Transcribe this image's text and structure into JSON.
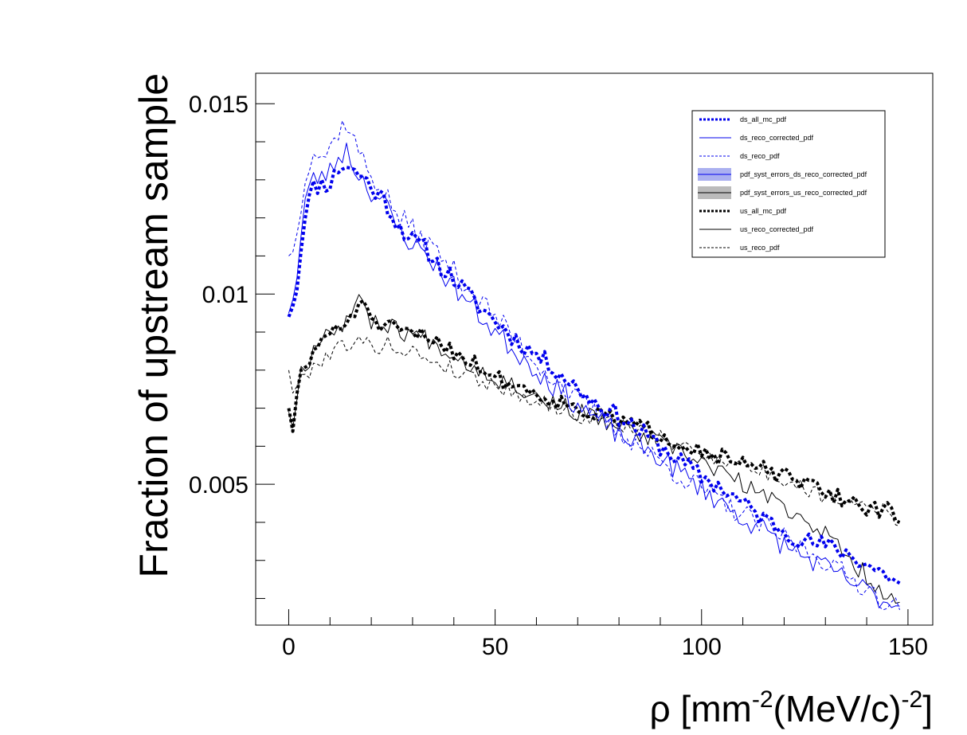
{
  "chart_data": {
    "type": "line",
    "xlabel": "ρ [mm-2(MeV/c)-2]",
    "xlabel_parts": {
      "base": "ρ [mm",
      "sup1": "-2",
      "mid": "(MeV/c)",
      "sup2": "-2",
      "end": "]"
    },
    "ylabel": "Fraction of upstream sample",
    "xlim": [
      -8,
      156
    ],
    "ylim": [
      0.0013,
      0.0158
    ],
    "x_ticks": [
      {
        "value": 0,
        "label": "0"
      },
      {
        "value": 50,
        "label": "50"
      },
      {
        "value": 100,
        "label": "100"
      },
      {
        "value": 150,
        "label": "150"
      }
    ],
    "y_ticks": [
      {
        "value": 0.005,
        "label": "0.005"
      },
      {
        "value": 0.01,
        "label": "0.01"
      },
      {
        "value": 0.015,
        "label": "0.015"
      }
    ],
    "grid": false,
    "legend_position": "top-right",
    "series": [
      {
        "name": "ds_all_mc_pdf",
        "color": "#0000ee",
        "style": "dotted-thick",
        "anchors": [
          [
            0,
            0.0094
          ],
          [
            2,
            0.0102
          ],
          [
            4,
            0.0122
          ],
          [
            6,
            0.0128
          ],
          [
            8,
            0.0129
          ],
          [
            10,
            0.0129
          ],
          [
            12,
            0.0133
          ],
          [
            14,
            0.0134
          ],
          [
            16,
            0.0132
          ],
          [
            18,
            0.0131
          ],
          [
            20,
            0.0128
          ],
          [
            23,
            0.0125
          ],
          [
            26,
            0.0119
          ],
          [
            30,
            0.0114
          ],
          [
            33,
            0.0112
          ],
          [
            36,
            0.0108
          ],
          [
            40,
            0.0104
          ],
          [
            45,
            0.0098
          ],
          [
            50,
            0.0093
          ],
          [
            55,
            0.0088
          ],
          [
            60,
            0.0084
          ],
          [
            65,
            0.008
          ],
          [
            70,
            0.0075
          ],
          [
            75,
            0.0071
          ],
          [
            80,
            0.0068
          ],
          [
            85,
            0.0064
          ],
          [
            90,
            0.006
          ],
          [
            95,
            0.0056
          ],
          [
            100,
            0.0052
          ],
          [
            105,
            0.0049
          ],
          [
            110,
            0.0045
          ],
          [
            115,
            0.0041
          ],
          [
            120,
            0.0038
          ],
          [
            125,
            0.0035
          ],
          [
            130,
            0.0034
          ],
          [
            135,
            0.0032
          ],
          [
            140,
            0.0029
          ],
          [
            145,
            0.0026
          ],
          [
            148,
            0.0024
          ]
        ],
        "noise": 0.00025,
        "seed": 11
      },
      {
        "name": "ds_reco_corrected_pdf",
        "color": "#0000ee",
        "style": "solid-thin",
        "anchors": [
          [
            0,
            0.0095
          ],
          [
            2,
            0.0105
          ],
          [
            4,
            0.0125
          ],
          [
            6,
            0.013
          ],
          [
            8,
            0.0131
          ],
          [
            10,
            0.0132
          ],
          [
            12,
            0.0136
          ],
          [
            14,
            0.0138
          ],
          [
            16,
            0.0133
          ],
          [
            18,
            0.013
          ],
          [
            20,
            0.0127
          ],
          [
            23,
            0.0124
          ],
          [
            26,
            0.0118
          ],
          [
            30,
            0.0113
          ],
          [
            33,
            0.0111
          ],
          [
            36,
            0.0107
          ],
          [
            40,
            0.0102
          ],
          [
            45,
            0.0096
          ],
          [
            50,
            0.009
          ],
          [
            55,
            0.0085
          ],
          [
            60,
            0.008
          ],
          [
            65,
            0.0075
          ],
          [
            70,
            0.0071
          ],
          [
            75,
            0.0067
          ],
          [
            80,
            0.0063
          ],
          [
            85,
            0.006
          ],
          [
            90,
            0.0057
          ],
          [
            95,
            0.0053
          ],
          [
            100,
            0.0049
          ],
          [
            105,
            0.0045
          ],
          [
            110,
            0.0041
          ],
          [
            115,
            0.0038
          ],
          [
            120,
            0.0034
          ],
          [
            125,
            0.0031
          ],
          [
            130,
            0.0028
          ],
          [
            135,
            0.0025
          ],
          [
            140,
            0.0022
          ],
          [
            145,
            0.0019
          ],
          [
            148,
            0.0018
          ]
        ],
        "noise": 0.0003,
        "seed": 23
      },
      {
        "name": "ds_reco_pdf",
        "color": "#0000ee",
        "style": "dashed-thin",
        "anchors": [
          [
            0,
            0.011
          ],
          [
            2,
            0.0115
          ],
          [
            4,
            0.0132
          ],
          [
            6,
            0.0138
          ],
          [
            8,
            0.0136
          ],
          [
            10,
            0.0138
          ],
          [
            12,
            0.0143
          ],
          [
            14,
            0.0145
          ],
          [
            16,
            0.014
          ],
          [
            18,
            0.0135
          ],
          [
            20,
            0.0131
          ],
          [
            23,
            0.0127
          ],
          [
            26,
            0.0121
          ],
          [
            30,
            0.0117
          ],
          [
            33,
            0.0114
          ],
          [
            36,
            0.0111
          ],
          [
            40,
            0.0106
          ],
          [
            45,
            0.01
          ],
          [
            50,
            0.0094
          ],
          [
            55,
            0.0088
          ],
          [
            60,
            0.0082
          ],
          [
            65,
            0.0077
          ],
          [
            70,
            0.0072
          ],
          [
            75,
            0.0068
          ],
          [
            80,
            0.0064
          ],
          [
            85,
            0.006
          ],
          [
            90,
            0.0056
          ],
          [
            95,
            0.0052
          ],
          [
            100,
            0.0049
          ],
          [
            105,
            0.0045
          ],
          [
            110,
            0.0042
          ],
          [
            115,
            0.0039
          ],
          [
            120,
            0.0036
          ],
          [
            125,
            0.0033
          ],
          [
            130,
            0.003
          ],
          [
            135,
            0.0026
          ],
          [
            140,
            0.0023
          ],
          [
            145,
            0.0019
          ],
          [
            148,
            0.0017
          ]
        ],
        "noise": 0.0003,
        "seed": 37
      },
      {
        "name": "pdf_syst_errors_ds_reco_corrected_pdf",
        "color": "#aab0f0",
        "style": "band-blue",
        "anchors": []
      },
      {
        "name": "pdf_syst_errors_us_reco_corrected_pdf",
        "color": "#bbbbbb",
        "style": "band-gray",
        "anchors": []
      },
      {
        "name": "us_all_mc_pdf",
        "color": "#000000",
        "style": "dotted-thick",
        "anchors": [
          [
            0,
            0.007
          ],
          [
            1,
            0.0065
          ],
          [
            3,
            0.0079
          ],
          [
            5,
            0.0082
          ],
          [
            8,
            0.0089
          ],
          [
            12,
            0.009
          ],
          [
            16,
            0.0095
          ],
          [
            18,
            0.01
          ],
          [
            20,
            0.0092
          ],
          [
            24,
            0.0091
          ],
          [
            28,
            0.009
          ],
          [
            32,
            0.0089
          ],
          [
            36,
            0.0088
          ],
          [
            40,
            0.0085
          ],
          [
            45,
            0.0082
          ],
          [
            50,
            0.0078
          ],
          [
            55,
            0.0076
          ],
          [
            60,
            0.0074
          ],
          [
            65,
            0.0072
          ],
          [
            70,
            0.007
          ],
          [
            75,
            0.0068
          ],
          [
            80,
            0.0067
          ],
          [
            85,
            0.0065
          ],
          [
            90,
            0.0063
          ],
          [
            95,
            0.0061
          ],
          [
            100,
            0.0059
          ],
          [
            105,
            0.0057
          ],
          [
            110,
            0.0055
          ],
          [
            115,
            0.0054
          ],
          [
            120,
            0.0052
          ],
          [
            125,
            0.005
          ],
          [
            130,
            0.0048
          ],
          [
            135,
            0.0046
          ],
          [
            140,
            0.0044
          ],
          [
            145,
            0.0043
          ],
          [
            148,
            0.004
          ]
        ],
        "noise": 0.00022,
        "seed": 51
      },
      {
        "name": "us_reco_corrected_pdf",
        "color": "#000000",
        "style": "solid-thin",
        "anchors": [
          [
            0,
            0.0069
          ],
          [
            1,
            0.0066
          ],
          [
            3,
            0.008
          ],
          [
            5,
            0.0083
          ],
          [
            8,
            0.009
          ],
          [
            12,
            0.0091
          ],
          [
            16,
            0.0096
          ],
          [
            18,
            0.0099
          ],
          [
            20,
            0.0093
          ],
          [
            24,
            0.0092
          ],
          [
            28,
            0.009
          ],
          [
            32,
            0.0089
          ],
          [
            36,
            0.0087
          ],
          [
            40,
            0.0084
          ],
          [
            45,
            0.0081
          ],
          [
            50,
            0.0078
          ],
          [
            55,
            0.0076
          ],
          [
            60,
            0.0073
          ],
          [
            65,
            0.0071
          ],
          [
            70,
            0.0069
          ],
          [
            75,
            0.0067
          ],
          [
            80,
            0.0065
          ],
          [
            85,
            0.0063
          ],
          [
            90,
            0.0061
          ],
          [
            95,
            0.0058
          ],
          [
            100,
            0.0056
          ],
          [
            105,
            0.0053
          ],
          [
            110,
            0.005
          ],
          [
            115,
            0.0047
          ],
          [
            120,
            0.0044
          ],
          [
            125,
            0.0041
          ],
          [
            130,
            0.0037
          ],
          [
            135,
            0.0031
          ],
          [
            140,
            0.0026
          ],
          [
            145,
            0.0021
          ],
          [
            148,
            0.0019
          ]
        ],
        "noise": 0.00025,
        "seed": 67
      },
      {
        "name": "us_reco_pdf",
        "color": "#000000",
        "style": "dashed-thin",
        "anchors": [
          [
            0,
            0.008
          ],
          [
            1,
            0.0075
          ],
          [
            3,
            0.0077
          ],
          [
            5,
            0.008
          ],
          [
            8,
            0.0083
          ],
          [
            12,
            0.0086
          ],
          [
            16,
            0.0088
          ],
          [
            18,
            0.0087
          ],
          [
            20,
            0.0086
          ],
          [
            24,
            0.0087
          ],
          [
            28,
            0.0085
          ],
          [
            32,
            0.0084
          ],
          [
            36,
            0.0082
          ],
          [
            40,
            0.008
          ],
          [
            45,
            0.0078
          ],
          [
            50,
            0.0076
          ],
          [
            55,
            0.0074
          ],
          [
            60,
            0.0072
          ],
          [
            65,
            0.007
          ],
          [
            70,
            0.0068
          ],
          [
            75,
            0.0067
          ],
          [
            80,
            0.0066
          ],
          [
            85,
            0.0064
          ],
          [
            90,
            0.0062
          ],
          [
            95,
            0.006
          ],
          [
            100,
            0.0058
          ],
          [
            105,
            0.0057
          ],
          [
            110,
            0.0055
          ],
          [
            115,
            0.0053
          ],
          [
            120,
            0.0051
          ],
          [
            125,
            0.0049
          ],
          [
            130,
            0.0047
          ],
          [
            135,
            0.0046
          ],
          [
            140,
            0.0045
          ],
          [
            145,
            0.0043
          ],
          [
            148,
            0.0039
          ]
        ],
        "noise": 0.00022,
        "seed": 79
      }
    ]
  }
}
